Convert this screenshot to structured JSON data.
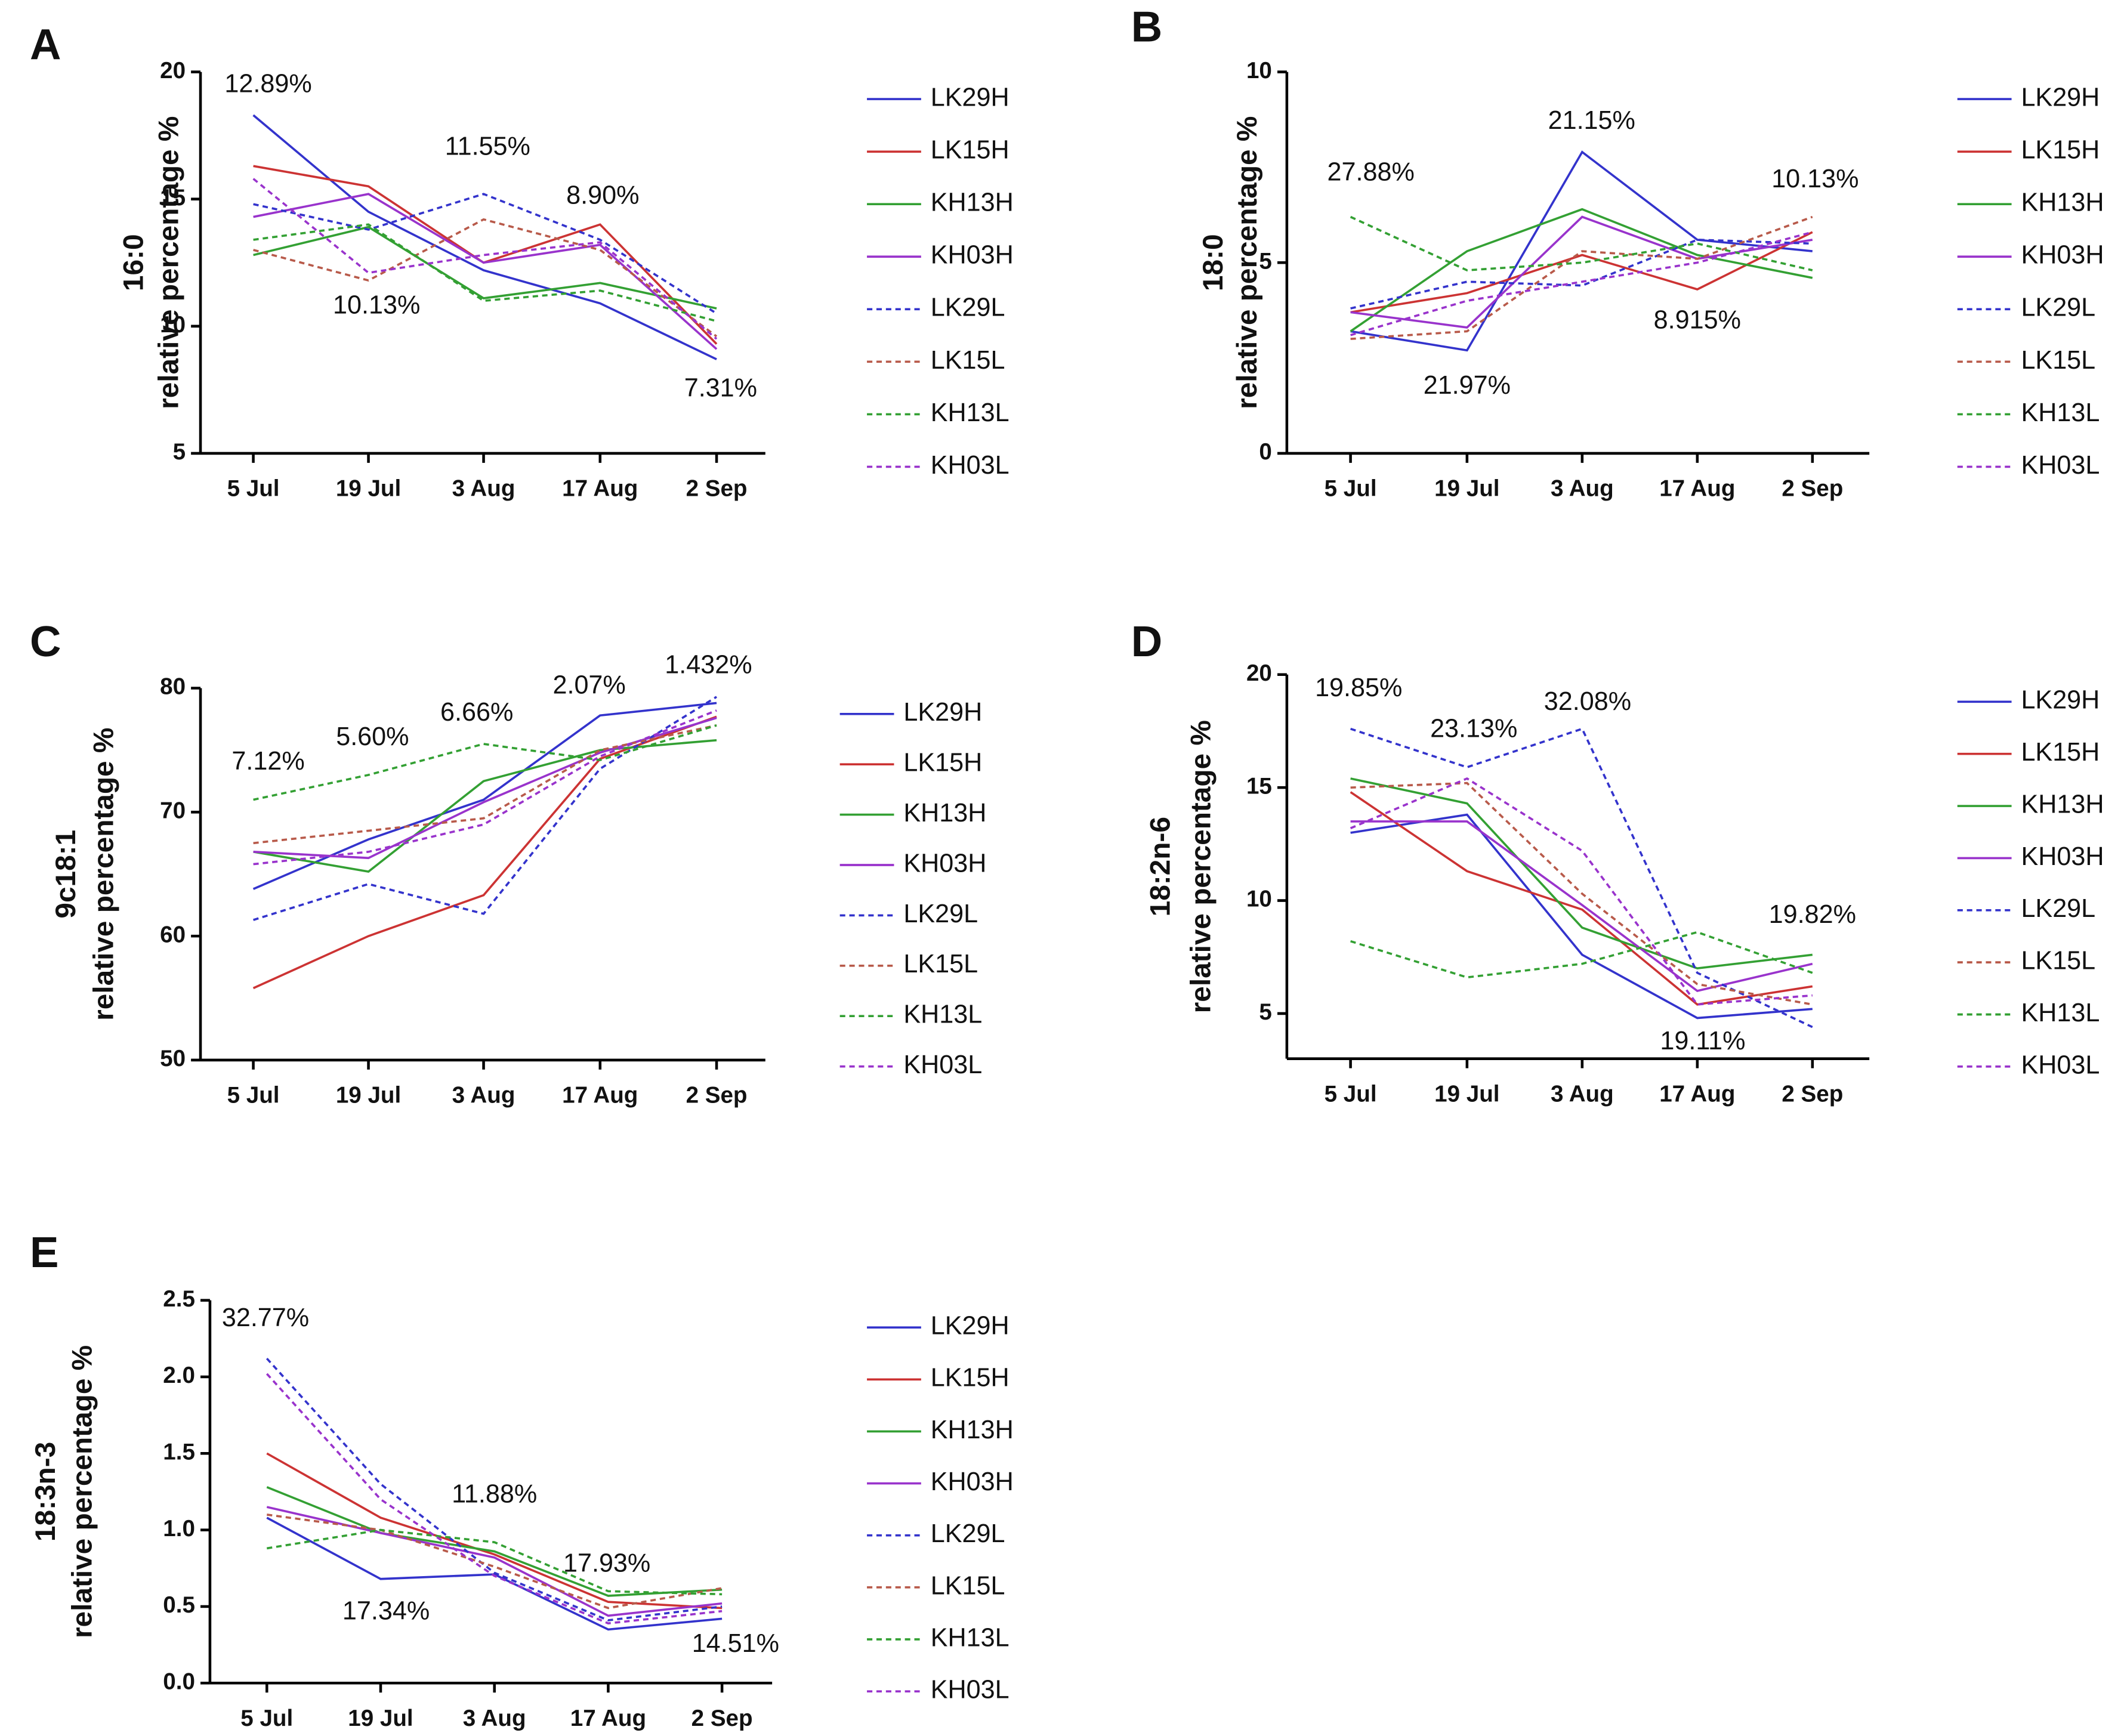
{
  "chart_data": [
    {
      "type": "line",
      "panel": "A",
      "ylabel": "16:0",
      "ylabel_sub": "relative percentage %",
      "categories": [
        "5 Jul",
        "19 Jul",
        "3 Aug",
        "17 Aug",
        "2 Sep"
      ],
      "ylim": [
        5,
        20
      ],
      "yticks": [
        5,
        10,
        15,
        20
      ],
      "annotations": [
        "12.89%",
        "11.55%",
        "8.90%",
        "10.13%",
        "7.31%"
      ],
      "series": [
        {
          "name": "LK29H",
          "color": "#3333cc",
          "dash": false,
          "values": [
            18.3,
            14.5,
            12.2,
            10.9,
            8.7
          ]
        },
        {
          "name": "LK15H",
          "color": "#cc3333",
          "dash": false,
          "values": [
            16.3,
            15.5,
            12.5,
            14.0,
            9.3
          ]
        },
        {
          "name": "KH13H",
          "color": "#33a033",
          "dash": false,
          "values": [
            12.8,
            13.9,
            11.1,
            11.7,
            10.7
          ]
        },
        {
          "name": "KH03H",
          "color": "#9933cc",
          "dash": false,
          "values": [
            14.3,
            15.2,
            12.5,
            13.2,
            9.1
          ]
        },
        {
          "name": "LK29L",
          "color": "#3333cc",
          "dash": true,
          "values": [
            14.8,
            13.8,
            15.2,
            13.4,
            10.5
          ]
        },
        {
          "name": "LK15L",
          "color": "#b85a4a",
          "dash": true,
          "values": [
            13.0,
            11.8,
            14.2,
            13.0,
            9.6
          ]
        },
        {
          "name": "KH13L",
          "color": "#33a033",
          "dash": true,
          "values": [
            13.4,
            14.0,
            11.0,
            11.4,
            10.2
          ]
        },
        {
          "name": "KH03L",
          "color": "#9933cc",
          "dash": true,
          "values": [
            15.8,
            12.1,
            12.8,
            13.3,
            9.5
          ]
        }
      ]
    },
    {
      "type": "line",
      "panel": "B",
      "ylabel": "18:0",
      "ylabel_sub": "relative percentage %",
      "categories": [
        "5 Jul",
        "19 Jul",
        "3 Aug",
        "17 Aug",
        "2 Sep"
      ],
      "ylim": [
        0,
        10
      ],
      "yticks": [
        0,
        5,
        10
      ],
      "annotations": [
        "27.88%",
        "21.15%",
        "10.13%",
        "8.915%",
        "21.97%"
      ],
      "series": [
        {
          "name": "LK29H",
          "color": "#3333cc",
          "dash": false,
          "values": [
            3.2,
            2.7,
            7.9,
            5.6,
            5.3
          ]
        },
        {
          "name": "LK15H",
          "color": "#cc3333",
          "dash": false,
          "values": [
            3.7,
            4.2,
            5.2,
            4.3,
            5.8
          ]
        },
        {
          "name": "KH13H",
          "color": "#33a033",
          "dash": false,
          "values": [
            3.2,
            5.3,
            6.4,
            5.2,
            4.6
          ]
        },
        {
          "name": "KH03H",
          "color": "#9933cc",
          "dash": false,
          "values": [
            3.7,
            3.3,
            6.2,
            5.1,
            5.6
          ]
        },
        {
          "name": "LK29L",
          "color": "#3333cc",
          "dash": true,
          "values": [
            3.8,
            4.5,
            4.4,
            5.6,
            5.5
          ]
        },
        {
          "name": "LK15L",
          "color": "#b85a4a",
          "dash": true,
          "values": [
            3.0,
            3.2,
            5.3,
            5.1,
            6.2
          ]
        },
        {
          "name": "KH13L",
          "color": "#33a033",
          "dash": true,
          "values": [
            6.2,
            4.8,
            5.0,
            5.5,
            4.8
          ]
        },
        {
          "name": "KH03L",
          "color": "#9933cc",
          "dash": true,
          "values": [
            3.1,
            4.0,
            4.5,
            5.0,
            5.8
          ]
        }
      ]
    },
    {
      "type": "line",
      "panel": "C",
      "ylabel": "9c18:1",
      "ylabel_sub": "relative percentage %",
      "categories": [
        "5 Jul",
        "19 Jul",
        "3 Aug",
        "17 Aug",
        "2 Sep"
      ],
      "ylim": [
        50,
        80
      ],
      "yticks": [
        50,
        60,
        70,
        80
      ],
      "annotations": [
        "7.12%",
        "5.60%",
        "6.66%",
        "2.07%",
        "1.432%"
      ],
      "series": [
        {
          "name": "LK29H",
          "color": "#3333cc",
          "dash": false,
          "values": [
            63.8,
            67.8,
            71.0,
            77.8,
            78.8
          ]
        },
        {
          "name": "LK15H",
          "color": "#cc3333",
          "dash": false,
          "values": [
            55.8,
            60.0,
            63.3,
            74.3,
            77.7
          ]
        },
        {
          "name": "KH13H",
          "color": "#33a033",
          "dash": false,
          "values": [
            66.8,
            65.2,
            72.5,
            75.0,
            75.8
          ]
        },
        {
          "name": "KH03H",
          "color": "#9933cc",
          "dash": false,
          "values": [
            66.8,
            66.3,
            70.8,
            74.8,
            77.6
          ]
        },
        {
          "name": "LK29L",
          "color": "#3333cc",
          "dash": true,
          "values": [
            61.3,
            64.2,
            61.8,
            73.5,
            79.3
          ]
        },
        {
          "name": "LK15L",
          "color": "#b85a4a",
          "dash": true,
          "values": [
            67.5,
            68.5,
            69.5,
            75.0,
            77.0
          ]
        },
        {
          "name": "KH13L",
          "color": "#33a033",
          "dash": true,
          "values": [
            71.0,
            73.0,
            75.5,
            74.2,
            77.0
          ]
        },
        {
          "name": "KH03L",
          "color": "#9933cc",
          "dash": true,
          "values": [
            65.8,
            66.8,
            69.0,
            74.5,
            78.2
          ]
        }
      ]
    },
    {
      "type": "line",
      "panel": "D",
      "ylabel": "18:2n-6",
      "ylabel_sub": "relative percentage %",
      "categories": [
        "5 Jul",
        "19 Jul",
        "3 Aug",
        "17 Aug",
        "2 Sep"
      ],
      "ylim": [
        3,
        20
      ],
      "yticks": [
        5,
        10,
        15,
        20
      ],
      "annotations": [
        "19.85%",
        "23.13%",
        "32.08%",
        "19.82%",
        "19.11%"
      ],
      "series": [
        {
          "name": "LK29H",
          "color": "#3333cc",
          "dash": false,
          "values": [
            13.0,
            13.8,
            7.6,
            4.8,
            5.2
          ]
        },
        {
          "name": "LK15H",
          "color": "#cc3333",
          "dash": false,
          "values": [
            14.8,
            11.3,
            9.6,
            5.4,
            6.2
          ]
        },
        {
          "name": "KH13H",
          "color": "#33a033",
          "dash": false,
          "values": [
            15.4,
            14.3,
            8.8,
            7.0,
            7.6
          ]
        },
        {
          "name": "KH03H",
          "color": "#9933cc",
          "dash": false,
          "values": [
            13.5,
            13.5,
            9.8,
            6.0,
            7.2
          ]
        },
        {
          "name": "LK29L",
          "color": "#3333cc",
          "dash": true,
          "values": [
            17.6,
            15.9,
            17.6,
            6.8,
            4.4
          ]
        },
        {
          "name": "LK15L",
          "color": "#b85a4a",
          "dash": true,
          "values": [
            15.0,
            15.2,
            10.3,
            6.3,
            5.4
          ]
        },
        {
          "name": "KH13L",
          "color": "#33a033",
          "dash": true,
          "values": [
            8.2,
            6.6,
            7.2,
            8.6,
            6.8
          ]
        },
        {
          "name": "KH03L",
          "color": "#9933cc",
          "dash": true,
          "values": [
            13.2,
            15.4,
            12.2,
            5.4,
            5.8
          ]
        }
      ]
    },
    {
      "type": "line",
      "panel": "E",
      "ylabel": "18:3n-3",
      "ylabel_sub": "relative percentage %",
      "categories": [
        "5 Jul",
        "19 Jul",
        "3 Aug",
        "17 Aug",
        "2 Sep"
      ],
      "ylim": [
        0,
        2.5
      ],
      "yticks": [
        {
          "value": 0,
          "label": "0.0"
        },
        0.5,
        {
          "value": 1,
          "label": "1.0"
        },
        1.5,
        {
          "value": 2,
          "label": "2.0"
        },
        2.5
      ],
      "annotations": [
        "32.77%",
        "11.88%",
        "17.93%",
        "17.34%",
        "14.51%"
      ],
      "series": [
        {
          "name": "LK29H",
          "color": "#3333cc",
          "dash": false,
          "values": [
            1.08,
            0.68,
            0.71,
            0.35,
            0.42
          ]
        },
        {
          "name": "LK15H",
          "color": "#cc3333",
          "dash": false,
          "values": [
            1.5,
            1.08,
            0.84,
            0.53,
            0.49
          ]
        },
        {
          "name": "KH13H",
          "color": "#33a033",
          "dash": false,
          "values": [
            1.28,
            0.98,
            0.86,
            0.57,
            0.61
          ]
        },
        {
          "name": "KH03H",
          "color": "#9933cc",
          "dash": false,
          "values": [
            1.15,
            0.98,
            0.82,
            0.44,
            0.52
          ]
        },
        {
          "name": "LK29L",
          "color": "#3333cc",
          "dash": true,
          "values": [
            2.12,
            1.3,
            0.72,
            0.41,
            0.5
          ]
        },
        {
          "name": "LK15L",
          "color": "#b85a4a",
          "dash": true,
          "values": [
            1.1,
            1.0,
            0.76,
            0.49,
            0.62
          ]
        },
        {
          "name": "KH13L",
          "color": "#33a033",
          "dash": true,
          "values": [
            0.88,
            1.0,
            0.92,
            0.6,
            0.58
          ]
        },
        {
          "name": "KH03L",
          "color": "#9933cc",
          "dash": true,
          "values": [
            2.02,
            1.2,
            0.7,
            0.39,
            0.47
          ]
        }
      ]
    }
  ]
}
